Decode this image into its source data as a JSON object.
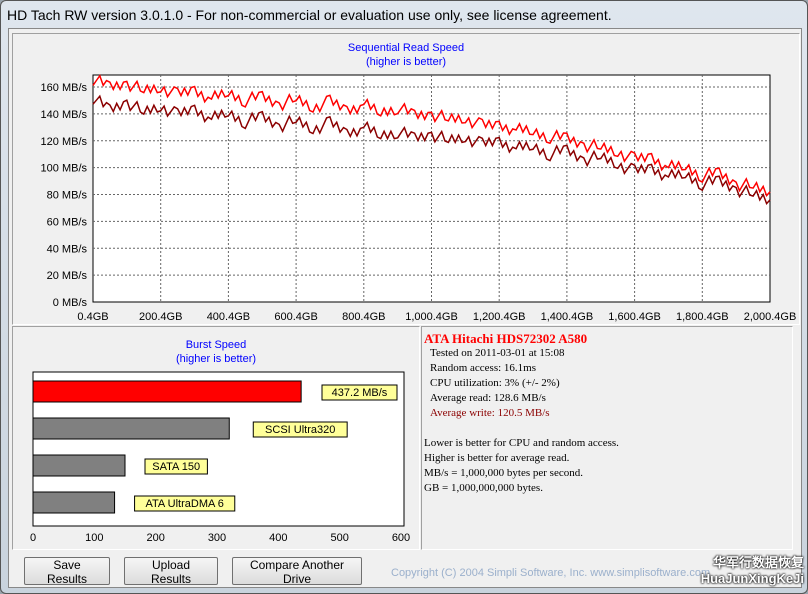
{
  "window": {
    "title": "HD Tach RW version 3.0.1.0  - For non-commercial or evaluation use only, see license agreement."
  },
  "chart_data": [
    {
      "type": "line",
      "title": "Sequential Read Speed",
      "subtitle": "(higher is better)",
      "xlim": [
        0.4,
        2000.4
      ],
      "ylim": [
        0,
        169
      ],
      "xticks": [
        "0.4GB",
        "200.4GB",
        "400.4GB",
        "600.4GB",
        "800.4GB",
        "1,000.4GB",
        "1,200.4GB",
        "1,400.4GB",
        "1,600.4GB",
        "1,800.4GB",
        "2,000.4GB"
      ],
      "yticks": [
        "0 MB/s",
        "20 MB/s",
        "40 MB/s",
        "60 MB/s",
        "80 MB/s",
        "100 MB/s",
        "120 MB/s",
        "140 MB/s",
        "160 MB/s"
      ],
      "x": [
        0,
        50,
        100,
        150,
        200,
        250,
        300,
        350,
        400,
        450,
        500,
        550,
        600,
        650,
        700,
        750,
        800,
        850,
        900,
        950,
        1000,
        1050,
        1100,
        1150,
        1200,
        1250,
        1300,
        1350,
        1400,
        1450,
        1500,
        1550,
        1600,
        1650,
        1700,
        1750,
        1800,
        1850,
        1900,
        1950,
        2000
      ],
      "series": [
        {
          "name": "Read",
          "color": "#ff0000",
          "values": [
            166,
            160,
            163,
            157,
            160,
            154,
            158,
            151,
            156,
            150,
            153,
            147,
            151,
            145,
            149,
            143,
            147,
            141,
            145,
            139,
            140,
            136,
            137,
            131,
            132,
            128,
            127,
            123,
            122,
            117,
            115,
            112,
            106,
            108,
            100,
            101,
            94,
            96,
            88,
            86,
            82
          ]
        },
        {
          "name": "Write",
          "color": "#8b0000",
          "values": [
            152,
            143,
            149,
            141,
            146,
            139,
            144,
            136,
            141,
            134,
            138,
            131,
            135,
            129,
            133,
            126,
            130,
            124,
            127,
            122,
            125,
            120,
            123,
            117,
            120,
            114,
            116,
            110,
            113,
            106,
            108,
            103,
            97,
            100,
            93,
            95,
            88,
            90,
            84,
            80,
            76
          ]
        }
      ]
    },
    {
      "type": "bar",
      "title": "Burst Speed",
      "subtitle": "(higher is better)",
      "xlim": [
        0,
        600
      ],
      "xticks": [
        "0",
        "100",
        "200",
        "300",
        "400",
        "500",
        "600"
      ],
      "bars": [
        {
          "label": "437.2 MB/s",
          "value": 437.2,
          "color": "#ff0000"
        },
        {
          "label": "SCSI Ultra320",
          "value": 320,
          "color": "#808080"
        },
        {
          "label": "SATA 150",
          "value": 150,
          "color": "#808080"
        },
        {
          "label": "ATA UltraDMA 6",
          "value": 133,
          "color": "#808080"
        }
      ]
    }
  ],
  "info": {
    "drive": "ATA Hitachi HDS72302 A580",
    "tested": "Tested on 2011-03-01 at 15:08",
    "random": "Random access: 16.1ms",
    "cpu": "CPU utilization: 3% (+/- 2%)",
    "read": "Average read: 128.6 MB/s",
    "write": "Average write: 120.5 MB/s",
    "notes": [
      "Lower is better for CPU and random access.",
      "Higher is better for average read.",
      "MB/s = 1,000,000 bytes per second.",
      "GB = 1,000,000,000 bytes."
    ]
  },
  "buttons": {
    "save": "Save Results",
    "upload": "Upload Results",
    "compare": "Compare Another Drive"
  },
  "copyright": "Copyright (C) 2004 Simpli Software, Inc. www.simplisoftware.com",
  "watermark": {
    "line1": "华军行数据恢复",
    "line2": "HuaJunXingKeJi"
  }
}
